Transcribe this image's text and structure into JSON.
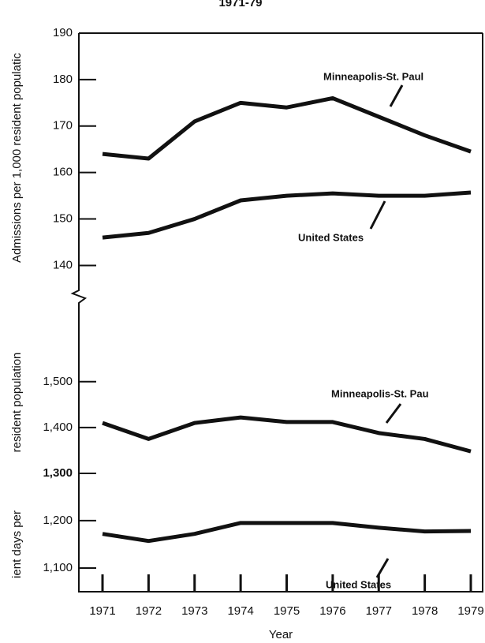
{
  "chart_data": [
    {
      "type": "line",
      "title": "1971-79",
      "ylabel": "Admissions per 1,000 resident populatic",
      "ylim": [
        136,
        190
      ],
      "yticks": [
        140,
        150,
        160,
        170,
        180,
        190
      ],
      "series": [
        {
          "name": "Minneapolis-St. Paul",
          "color": "#111111",
          "values": [
            164,
            163,
            171,
            175,
            174,
            176,
            172,
            168,
            164.5
          ]
        },
        {
          "name": "United States",
          "color": "#111111",
          "values": [
            146,
            147,
            150,
            154,
            155,
            155.5,
            155,
            155,
            155.7
          ]
        }
      ]
    },
    {
      "type": "line",
      "ylabel": "resident population",
      "ylim": [
        1300,
        1670
      ],
      "yticks": [
        {
          "value": 1300,
          "label": "1,300"
        },
        {
          "value": 1400,
          "label": "1,400"
        },
        {
          "value": 1500,
          "label": "1,500"
        }
      ],
      "series": [
        {
          "name": "Minneapolis-St. Pau",
          "color": "#111111",
          "values": [
            1410,
            1375,
            1410,
            1422,
            1412,
            1412,
            1388,
            1375,
            1348
          ]
        }
      ]
    },
    {
      "type": "line",
      "ylabel": "ient days per",
      "xlabel": "Year",
      "categories": [
        "1971",
        "1972",
        "1973",
        "1974",
        "1975",
        "1976",
        "1977",
        "1978",
        "1979"
      ],
      "ylim": [
        1050,
        1233
      ],
      "yticks": [
        {
          "value": 1100,
          "label": "1,100"
        },
        {
          "value": 1200,
          "label": "1,200"
        }
      ],
      "series": [
        {
          "name": "United States",
          "color": "#111111",
          "values": [
            1172,
            1157,
            1172,
            1195,
            1195,
            1195,
            1185,
            1177,
            1178
          ]
        }
      ]
    }
  ]
}
